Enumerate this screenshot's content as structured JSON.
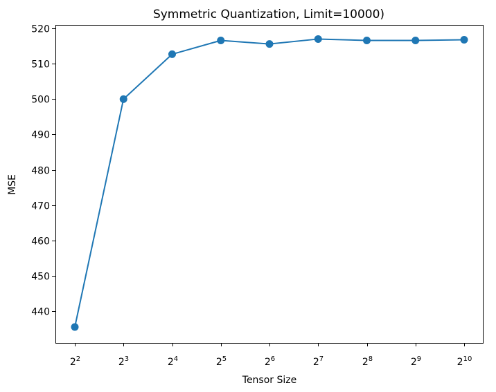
{
  "chart_data": {
    "type": "line",
    "title": "Symmetric Quantization, Limit=10000)",
    "xlabel": "Tensor Size",
    "ylabel": "MSE",
    "x_scale": "log2",
    "x": [
      4,
      8,
      16,
      32,
      64,
      128,
      256,
      512,
      1024
    ],
    "x_tick_labels": [
      {
        "base": "2",
        "exp": "2"
      },
      {
        "base": "2",
        "exp": "3"
      },
      {
        "base": "2",
        "exp": "4"
      },
      {
        "base": "2",
        "exp": "5"
      },
      {
        "base": "2",
        "exp": "6"
      },
      {
        "base": "2",
        "exp": "7"
      },
      {
        "base": "2",
        "exp": "8"
      },
      {
        "base": "2",
        "exp": "9"
      },
      {
        "base": "2",
        "exp": "10"
      }
    ],
    "y_ticks": [
      440,
      450,
      460,
      470,
      480,
      490,
      500,
      510,
      520
    ],
    "ylim": [
      431,
      521
    ],
    "series": [
      {
        "values": [
          435.5,
          500.0,
          512.7,
          516.6,
          515.6,
          517.0,
          516.6,
          516.6,
          516.8
        ],
        "color": "#1f77b4",
        "marker": "circle"
      }
    ],
    "grid": false,
    "legend": "none"
  }
}
